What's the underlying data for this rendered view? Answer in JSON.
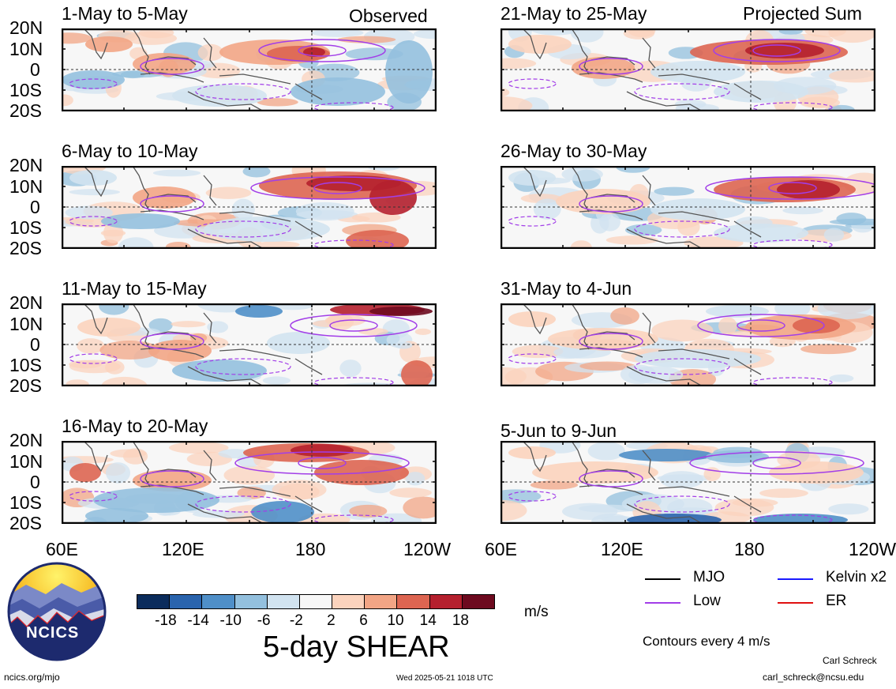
{
  "headings": {
    "observed": "Observed",
    "projected": "Projected Sum"
  },
  "panels_left": [
    {
      "title": "1-May to 5-May"
    },
    {
      "title": "6-May to 10-May"
    },
    {
      "title": "11-May to 15-May"
    },
    {
      "title": "16-May to 20-May"
    }
  ],
  "panels_right": [
    {
      "title": "21-May to 25-May"
    },
    {
      "title": "26-May to 30-May"
    },
    {
      "title": "31-May to 4-Jun"
    },
    {
      "title": "5-Jun to 9-Jun"
    }
  ],
  "lat_labels": [
    "20N",
    "10N",
    "0",
    "10S",
    "20S"
  ],
  "lon_labels": [
    "60E",
    "120E",
    "180",
    "120W"
  ],
  "colorbar": {
    "tick_labels": [
      "-18",
      "-14",
      "-10",
      "-6",
      "-2",
      "2",
      "6",
      "10",
      "14",
      "18"
    ],
    "colors": [
      "#0b2c5c",
      "#2a64ad",
      "#4f8fc8",
      "#93c0de",
      "#d1e3f0",
      "#f7f7f7",
      "#fbd3bd",
      "#f2a585",
      "#dd6551",
      "#b5202e",
      "#6d0a1f"
    ],
    "units": "m/s",
    "title": "5-day SHEAR"
  },
  "legend": [
    {
      "label": "MJO",
      "color": "#000000"
    },
    {
      "label": "Kelvin x2",
      "color": "#1a1aff"
    },
    {
      "label": "Low",
      "color": "#a23ee8"
    },
    {
      "label": "ER",
      "color": "#e01010"
    }
  ],
  "contour_note": "Contours every 4 m/s",
  "logo_text": "NCICS",
  "footer": {
    "site": "ncics.org/mjo",
    "timestamp": "Wed 2025-05-21 1018 UTC",
    "author": "Carl Schreck",
    "email": "carl_schreck@ncsu.edu"
  }
}
